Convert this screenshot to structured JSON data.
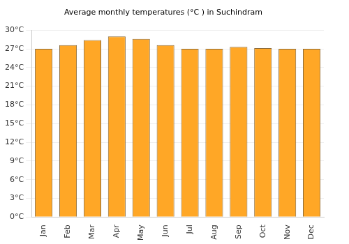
{
  "chart_data": {
    "type": "bar",
    "title": "Average monthly temperatures (°C ) in Suchindram",
    "categories": [
      "Jan",
      "Feb",
      "Mar",
      "Apr",
      "May",
      "Jun",
      "Jul",
      "Aug",
      "Sep",
      "Oct",
      "Nov",
      "Dec"
    ],
    "values": [
      27,
      27.6,
      28.4,
      29,
      28.6,
      27.6,
      27,
      27,
      27.3,
      27.1,
      27,
      27
    ],
    "color": "#ffa726",
    "ylim": [
      0,
      30
    ],
    "yticks": [
      {
        "value": 0,
        "label": "0°C"
      },
      {
        "value": 3,
        "label": "3°C"
      },
      {
        "value": 6,
        "label": "6°C"
      },
      {
        "value": 9,
        "label": "9°C"
      },
      {
        "value": 12,
        "label": "12°C"
      },
      {
        "value": 15,
        "label": "15°C"
      },
      {
        "value": 18,
        "label": "18°C"
      },
      {
        "value": 21,
        "label": "21°C"
      },
      {
        "value": 24,
        "label": "24°C"
      },
      {
        "value": 27,
        "label": "27°C"
      },
      {
        "value": 30,
        "label": "30°C"
      }
    ],
    "grid": true
  }
}
